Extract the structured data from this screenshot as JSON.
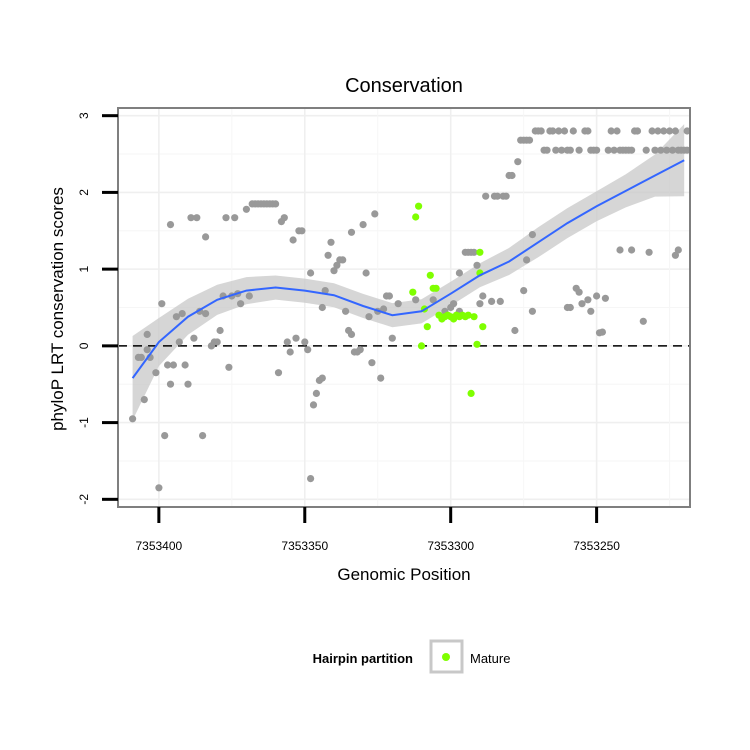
{
  "chart_data": {
    "type": "scatter",
    "title": "Conservation",
    "xlabel": "Genomic Position",
    "ylabel": "phyloP LRT conservation scores",
    "x_reversed": true,
    "xlim": [
      7353414,
      7353218
    ],
    "ylim": [
      -2.1,
      3.1
    ],
    "x_ticks": [
      7353400,
      7353350,
      7353300,
      7353250
    ],
    "x_tick_labels": [
      "7353400",
      "7353350",
      "7353300",
      "7353250"
    ],
    "y_ticks": [
      -2,
      -1,
      0,
      1,
      2,
      3
    ],
    "y_tick_labels": [
      "-2",
      "-1",
      "0",
      "1",
      "2",
      "3"
    ],
    "grid": true,
    "reference_line": {
      "y": 0,
      "style": "dashed"
    },
    "legend": {
      "title": "Hairpin partition",
      "entries": [
        {
          "label": "Mature",
          "color": "#7fff00"
        }
      ],
      "placement": "bottom"
    },
    "colors": {
      "other": "#999999",
      "mature": "#7fff00",
      "smooth": "#3366ff",
      "band": "#c8c8c8"
    },
    "series": [
      {
        "name": "",
        "color": "#999999",
        "points": [
          [
            7353409,
            -0.95
          ],
          [
            7353407,
            -0.15
          ],
          [
            7353406,
            -0.15
          ],
          [
            7353405,
            -0.7
          ],
          [
            7353404,
            -0.05
          ],
          [
            7353404,
            0.15
          ],
          [
            7353403,
            -0.15
          ],
          [
            7353401,
            -0.35
          ],
          [
            7353400,
            -1.85
          ],
          [
            7353399,
            0.55
          ],
          [
            7353398,
            -1.17
          ],
          [
            7353397,
            -0.25
          ],
          [
            7353396,
            -0.5
          ],
          [
            7353396,
            1.58
          ],
          [
            7353395,
            -0.25
          ],
          [
            7353394,
            0.38
          ],
          [
            7353393,
            0.05
          ],
          [
            7353392,
            0.42
          ],
          [
            7353391,
            -0.25
          ],
          [
            7353390,
            -0.5
          ],
          [
            7353389,
            1.67
          ],
          [
            7353388,
            0.1
          ],
          [
            7353387,
            1.67
          ],
          [
            7353386,
            0.45
          ],
          [
            7353385,
            -1.17
          ],
          [
            7353384,
            0.42
          ],
          [
            7353384,
            1.42
          ],
          [
            7353382,
            0.0
          ],
          [
            7353381,
            0.05
          ],
          [
            7353380,
            0.05
          ],
          [
            7353379,
            0.2
          ],
          [
            7353378,
            0.65
          ],
          [
            7353377,
            1.67
          ],
          [
            7353376,
            -0.28
          ],
          [
            7353375,
            0.65
          ],
          [
            7353374,
            1.67
          ],
          [
            7353373,
            0.68
          ],
          [
            7353372,
            0.55
          ],
          [
            7353370,
            1.78
          ],
          [
            7353369,
            0.65
          ],
          [
            7353368,
            1.85
          ],
          [
            7353367,
            1.85
          ],
          [
            7353366,
            1.85
          ],
          [
            7353365,
            1.85
          ],
          [
            7353364,
            1.85
          ],
          [
            7353363,
            1.85
          ],
          [
            7353362,
            1.85
          ],
          [
            7353361,
            1.85
          ],
          [
            7353360,
            1.85
          ],
          [
            7353359,
            -0.35
          ],
          [
            7353358,
            1.62
          ],
          [
            7353357,
            1.67
          ],
          [
            7353356,
            0.05
          ],
          [
            7353355,
            -0.08
          ],
          [
            7353354,
            1.38
          ],
          [
            7353353,
            0.1
          ],
          [
            7353352,
            1.5
          ],
          [
            7353351,
            1.5
          ],
          [
            7353350,
            0.05
          ],
          [
            7353349,
            -0.05
          ],
          [
            7353348,
            -1.73
          ],
          [
            7353348,
            0.95
          ],
          [
            7353347,
            -0.77
          ],
          [
            7353346,
            -0.62
          ],
          [
            7353345,
            -0.45
          ],
          [
            7353344,
            -0.42
          ],
          [
            7353344,
            0.5
          ],
          [
            7353343,
            0.72
          ],
          [
            7353342,
            1.18
          ],
          [
            7353341,
            1.35
          ],
          [
            7353340,
            0.98
          ],
          [
            7353339,
            1.05
          ],
          [
            7353338,
            1.12
          ],
          [
            7353337,
            1.12
          ],
          [
            7353336,
            0.45
          ],
          [
            7353335,
            0.2
          ],
          [
            7353334,
            0.15
          ],
          [
            7353334,
            1.48
          ],
          [
            7353333,
            -0.08
          ],
          [
            7353332,
            -0.08
          ],
          [
            7353331,
            -0.05
          ],
          [
            7353330,
            1.58
          ],
          [
            7353329,
            0.95
          ],
          [
            7353328,
            0.38
          ],
          [
            7353327,
            -0.22
          ],
          [
            7353326,
            1.72
          ],
          [
            7353325,
            0.45
          ],
          [
            7353324,
            -0.42
          ],
          [
            7353323,
            0.48
          ],
          [
            7353322,
            0.65
          ],
          [
            7353321,
            0.65
          ],
          [
            7353320,
            0.1
          ],
          [
            7353318,
            0.55
          ],
          [
            7353312,
            0.6
          ],
          [
            7353306,
            0.6
          ],
          [
            7353302,
            0.45
          ],
          [
            7353300,
            0.5
          ],
          [
            7353299,
            0.55
          ],
          [
            7353298,
            0.4
          ],
          [
            7353297,
            0.45
          ],
          [
            7353297,
            0.95
          ],
          [
            7353295,
            1.22
          ],
          [
            7353294,
            1.22
          ],
          [
            7353293,
            1.22
          ],
          [
            7353292,
            1.22
          ],
          [
            7353291,
            1.05
          ],
          [
            7353290,
            0.55
          ],
          [
            7353289,
            0.65
          ],
          [
            7353288,
            1.95
          ],
          [
            7353286,
            0.58
          ],
          [
            7353285,
            1.95
          ],
          [
            7353284,
            1.95
          ],
          [
            7353283,
            0.58
          ],
          [
            7353282,
            1.95
          ],
          [
            7353281,
            1.95
          ],
          [
            7353280,
            2.22
          ],
          [
            7353279,
            2.22
          ],
          [
            7353278,
            0.2
          ],
          [
            7353277,
            2.4
          ],
          [
            7353276,
            2.68
          ],
          [
            7353275,
            0.72
          ],
          [
            7353275,
            2.68
          ],
          [
            7353274,
            1.12
          ],
          [
            7353274,
            2.68
          ],
          [
            7353273,
            2.68
          ],
          [
            7353272,
            0.45
          ],
          [
            7353272,
            1.45
          ],
          [
            7353271,
            2.8
          ],
          [
            7353270,
            2.8
          ],
          [
            7353269,
            2.8
          ],
          [
            7353268,
            2.55
          ],
          [
            7353267,
            2.55
          ],
          [
            7353266,
            2.8
          ],
          [
            7353265,
            2.8
          ],
          [
            7353264,
            2.55
          ],
          [
            7353263,
            2.8
          ],
          [
            7353262,
            2.55
          ],
          [
            7353261,
            2.8
          ],
          [
            7353260,
            0.5
          ],
          [
            7353260,
            2.55
          ],
          [
            7353259,
            0.5
          ],
          [
            7353259,
            2.55
          ],
          [
            7353258,
            2.8
          ],
          [
            7353257,
            0.75
          ],
          [
            7353256,
            0.7
          ],
          [
            7353256,
            2.55
          ],
          [
            7353255,
            0.55
          ],
          [
            7353254,
            2.8
          ],
          [
            7353253,
            0.6
          ],
          [
            7353253,
            2.8
          ],
          [
            7353252,
            0.45
          ],
          [
            7353252,
            2.55
          ],
          [
            7353251,
            2.55
          ],
          [
            7353250,
            0.65
          ],
          [
            7353250,
            2.55
          ],
          [
            7353249,
            0.17
          ],
          [
            7353248,
            0.18
          ],
          [
            7353247,
            0.62
          ],
          [
            7353246,
            2.55
          ],
          [
            7353245,
            2.8
          ],
          [
            7353244,
            2.55
          ],
          [
            7353243,
            2.8
          ],
          [
            7353242,
            1.25
          ],
          [
            7353242,
            2.55
          ],
          [
            7353241,
            2.55
          ],
          [
            7353240,
            2.55
          ],
          [
            7353239,
            2.55
          ],
          [
            7353238,
            1.25
          ],
          [
            7353238,
            2.55
          ],
          [
            7353237,
            2.8
          ],
          [
            7353236,
            2.8
          ],
          [
            7353234,
            0.32
          ],
          [
            7353233,
            2.55
          ],
          [
            7353232,
            1.22
          ],
          [
            7353231,
            2.8
          ],
          [
            7353230,
            2.55
          ],
          [
            7353229,
            2.8
          ],
          [
            7353228,
            2.55
          ],
          [
            7353227,
            2.8
          ],
          [
            7353226,
            2.55
          ],
          [
            7353225,
            2.8
          ],
          [
            7353224,
            2.55
          ],
          [
            7353223,
            2.8
          ],
          [
            7353223,
            1.18
          ],
          [
            7353222,
            2.55
          ],
          [
            7353222,
            1.25
          ],
          [
            7353221,
            2.55
          ],
          [
            7353220,
            2.55
          ],
          [
            7353219,
            2.8
          ],
          [
            7353219,
            2.55
          ]
        ]
      },
      {
        "name": "Mature",
        "color": "#7fff00",
        "points": [
          [
            7353313,
            0.7
          ],
          [
            7353312,
            1.68
          ],
          [
            7353311,
            1.82
          ],
          [
            7353310,
            0.0
          ],
          [
            7353309,
            0.48
          ],
          [
            7353308,
            0.25
          ],
          [
            7353307,
            0.92
          ],
          [
            7353306,
            0.75
          ],
          [
            7353305,
            0.75
          ],
          [
            7353304,
            0.4
          ],
          [
            7353303,
            0.35
          ],
          [
            7353302,
            0.38
          ],
          [
            7353301,
            0.4
          ],
          [
            7353300,
            0.38
          ],
          [
            7353299,
            0.35
          ],
          [
            7353298,
            0.4
          ],
          [
            7353297,
            0.38
          ],
          [
            7353296,
            0.4
          ],
          [
            7353295,
            0.38
          ],
          [
            7353294,
            0.4
          ],
          [
            7353293,
            -0.62
          ],
          [
            7353292,
            0.38
          ],
          [
            7353291,
            0.02
          ],
          [
            7353290,
            0.95
          ],
          [
            7353290,
            1.22
          ],
          [
            7353289,
            0.25
          ]
        ]
      }
    ],
    "smooth": {
      "x": [
        7353409,
        7353400,
        7353390,
        7353380,
        7353370,
        7353360,
        7353350,
        7353340,
        7353330,
        7353320,
        7353310,
        7353300,
        7353290,
        7353280,
        7353270,
        7353260,
        7353250,
        7353240,
        7353230,
        7353220
      ],
      "y": [
        -0.42,
        0.05,
        0.38,
        0.6,
        0.72,
        0.76,
        0.72,
        0.66,
        0.52,
        0.4,
        0.45,
        0.68,
        0.92,
        1.1,
        1.35,
        1.6,
        1.82,
        2.02,
        2.22,
        2.42
      ],
      "se": [
        0.28,
        0.16,
        0.12,
        0.1,
        0.09,
        0.08,
        0.08,
        0.08,
        0.08,
        0.08,
        0.08,
        0.08,
        0.08,
        0.09,
        0.1,
        0.1,
        0.1,
        0.11,
        0.14,
        0.24
      ]
    }
  }
}
